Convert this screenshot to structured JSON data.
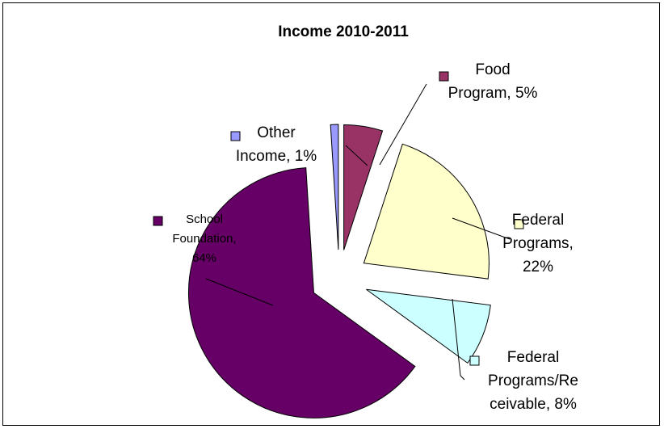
{
  "chart_data": {
    "type": "pie",
    "title": "Income 2010-2011",
    "slices": [
      {
        "name": "Food Program",
        "value": 5,
        "label_lines": [
          "Food",
          "Program, 5%"
        ],
        "color": "#993366"
      },
      {
        "name": "Federal Programs",
        "value": 22,
        "label_lines": [
          "Federal",
          "Programs,",
          "22%"
        ],
        "color": "#ffffcc"
      },
      {
        "name": "Federal Programs/Receivable",
        "value": 8,
        "label_lines": [
          "Federal",
          "Programs/Re",
          "ceivable, 8%"
        ],
        "color": "#ccffff"
      },
      {
        "name": "School Foundation",
        "value": 64,
        "label_lines": [
          "School",
          "Foundation,",
          "64%"
        ],
        "color": "#660066"
      },
      {
        "name": "Other Income",
        "value": 1,
        "label_lines": [
          "Other",
          "Income, 1%"
        ],
        "color": "#9999ff"
      }
    ],
    "exploded": true,
    "legend": "none"
  }
}
